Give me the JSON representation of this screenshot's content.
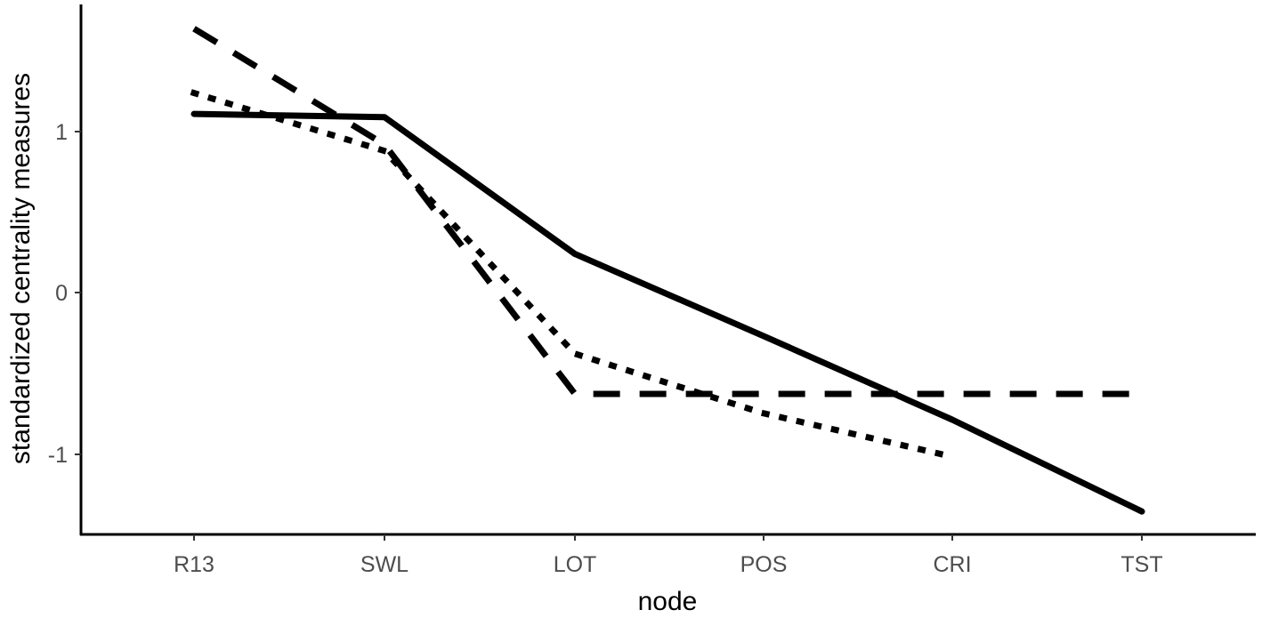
{
  "chart_data": {
    "type": "line",
    "title": "",
    "xlabel": "node",
    "ylabel": "standardized centrality measures",
    "categories": [
      "R13",
      "SWL",
      "LOT",
      "POS",
      "CRI",
      "TST"
    ],
    "series": [
      {
        "name": "solid",
        "line_style": "solid",
        "values": [
          1.11,
          1.09,
          0.24,
          -0.27,
          -0.79,
          -1.36
        ]
      },
      {
        "name": "dashed",
        "line_style": "dashed",
        "values": [
          1.64,
          0.92,
          -0.63,
          -0.63,
          -0.63,
          -0.63
        ]
      },
      {
        "name": "dotted",
        "line_style": "dotted",
        "values": [
          1.24,
          0.88,
          -0.38,
          -0.75,
          -1.02,
          null
        ]
      }
    ],
    "y_ticks": [
      -1,
      0,
      1
    ],
    "y_tick_labels": [
      "-1",
      "0",
      "1"
    ],
    "ylim": [
      -1.5,
      1.8
    ],
    "grid": false,
    "legend": "none"
  },
  "axes": {
    "x_title": "node",
    "y_title": "standardized centrality measures",
    "x_tick_labels": [
      "R13",
      "SWL",
      "LOT",
      "POS",
      "CRI",
      "TST"
    ],
    "y_tick_labels": [
      "1",
      "0",
      "-1"
    ]
  },
  "colors": {
    "line": "#000000",
    "axis": "#000000",
    "tick_text": "#4d4d4d",
    "background": "#ffffff"
  }
}
